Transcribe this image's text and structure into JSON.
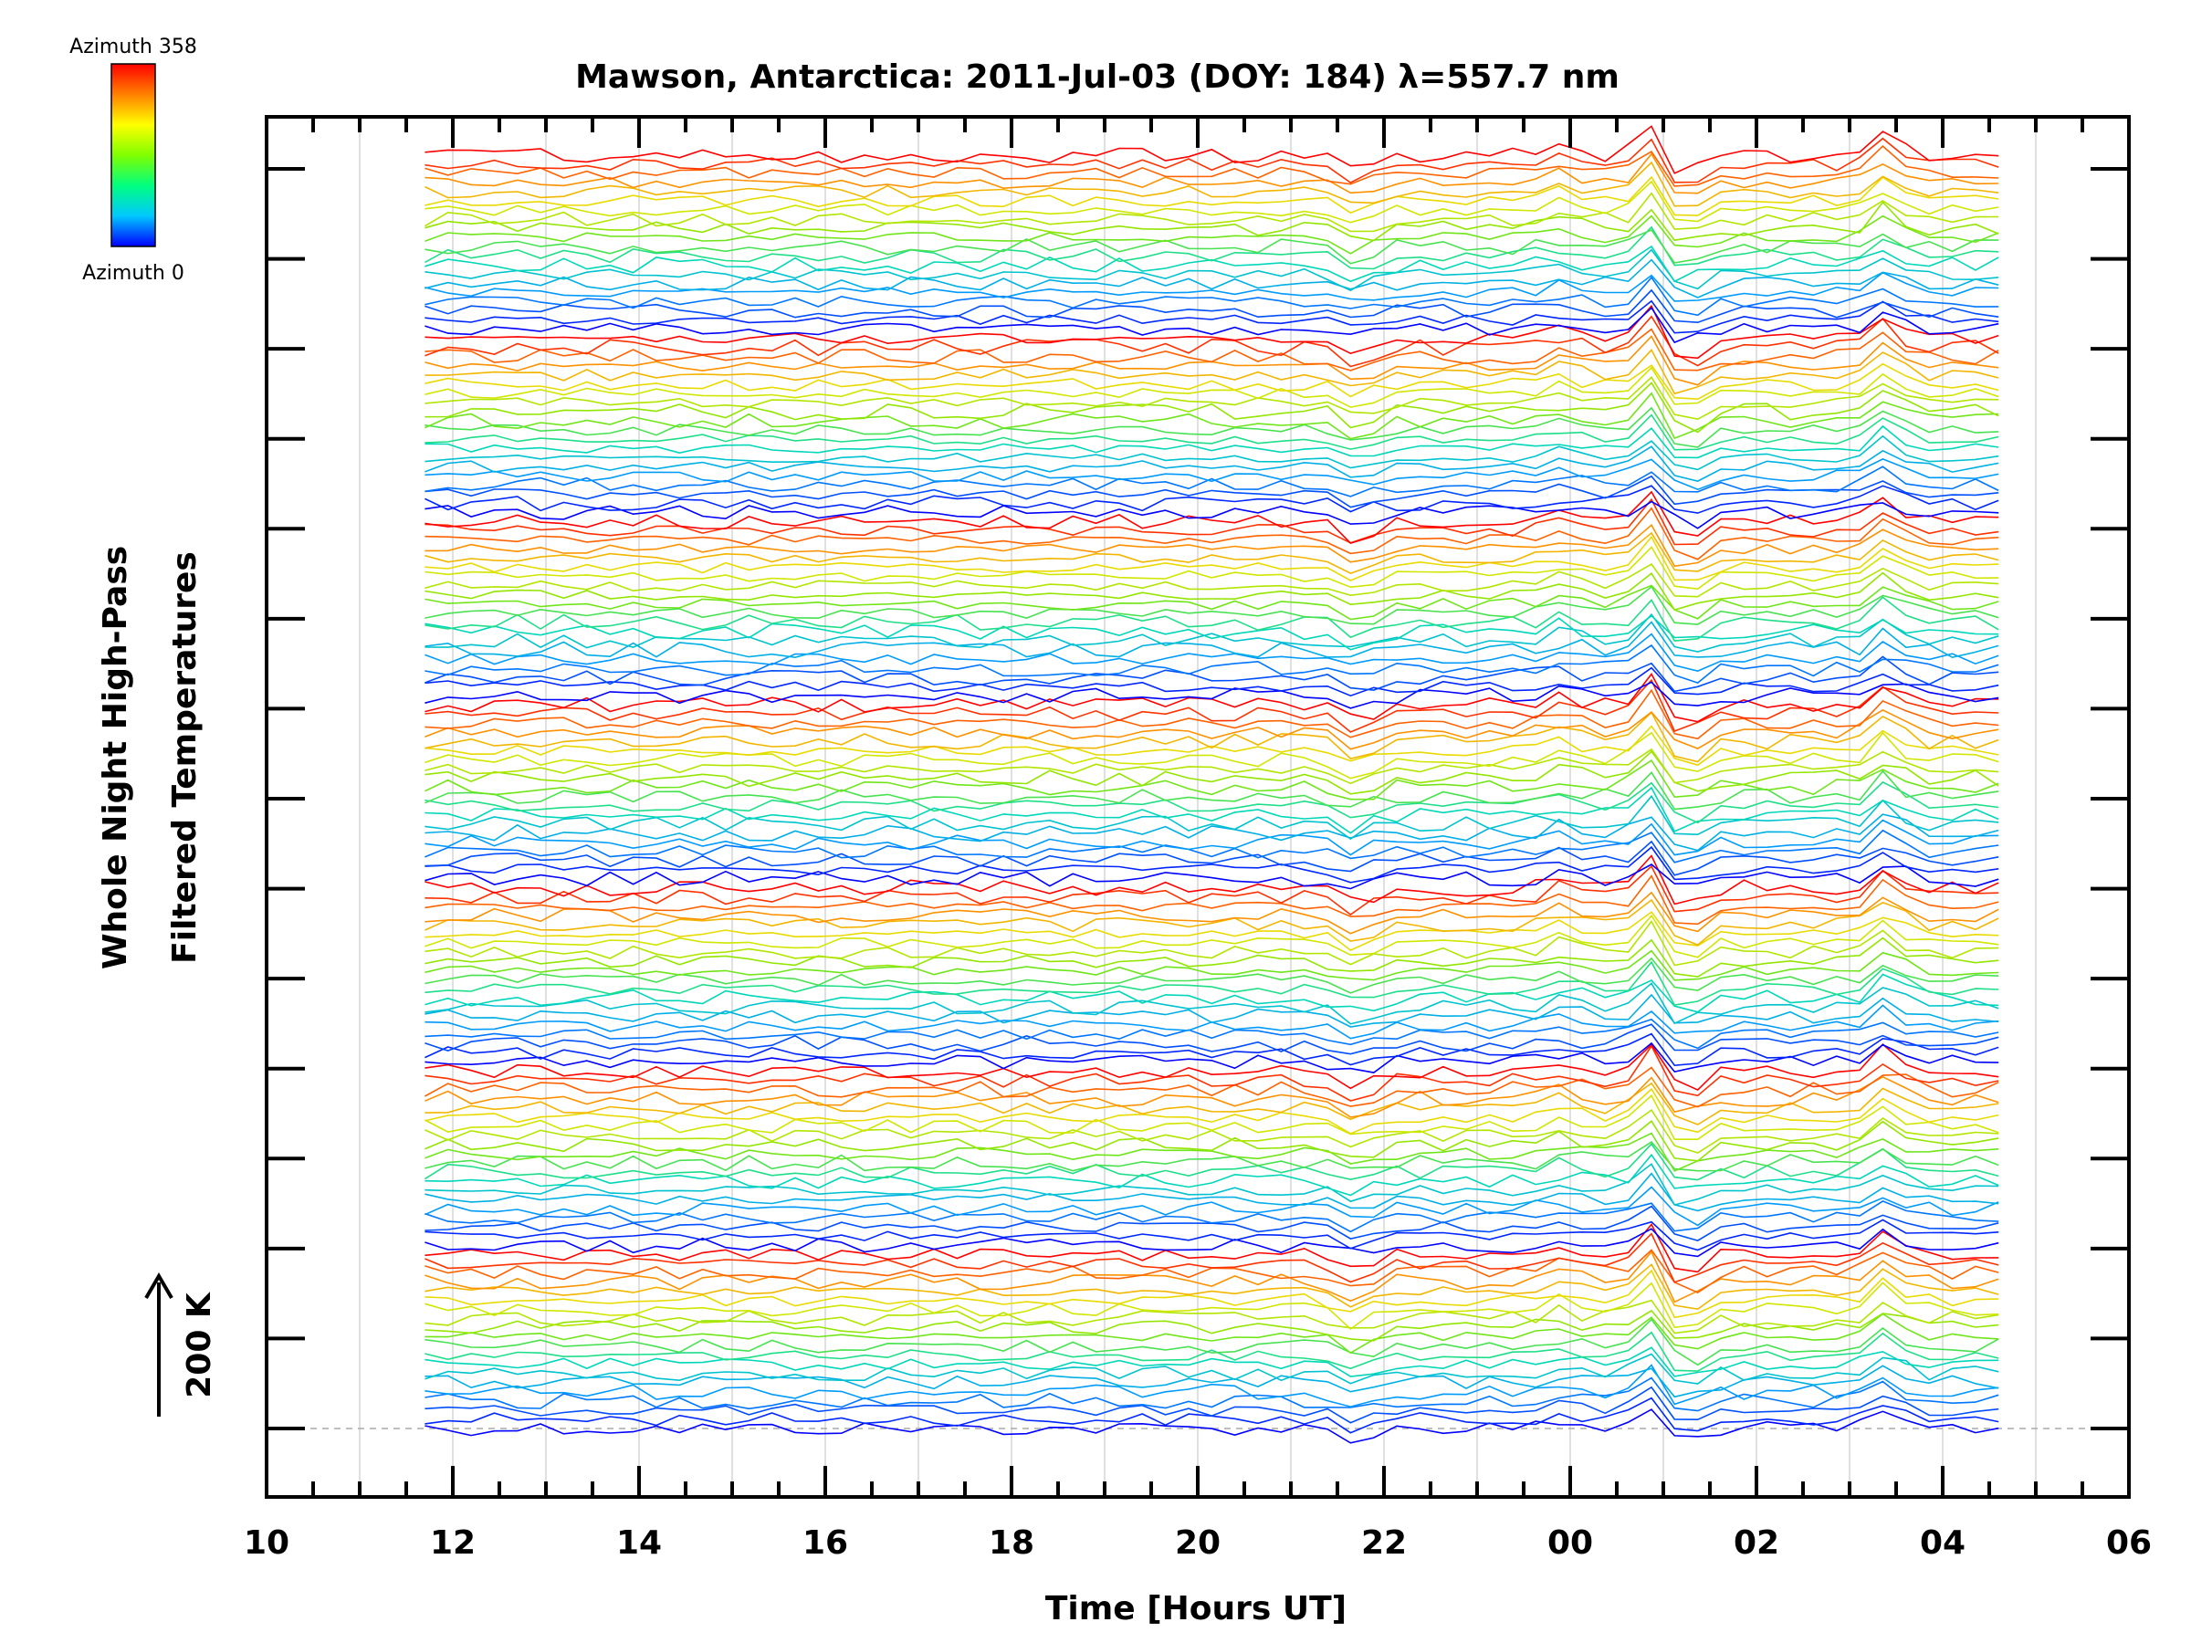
{
  "chart_data": {
    "type": "line",
    "title": "Mawson, Antarctica: 2011-Jul-03 (DOY: 184) λ=557.7 nm",
    "xlabel": "Time [Hours UT]",
    "ylabel_line1": "Whole Night High-Pass",
    "ylabel_line2": "Filtered Temperatures",
    "scale_label": "200 K",
    "colorbar": {
      "top_label": "Azimuth 358",
      "bottom_label": "Azimuth 0",
      "colors": [
        "#ff0000",
        "#ff8000",
        "#ffff00",
        "#80ff00",
        "#00ff80",
        "#00c8ff",
        "#0000ff"
      ]
    },
    "x_tick_labels": [
      "10",
      "12",
      "14",
      "16",
      "18",
      "20",
      "22",
      "00",
      "02",
      "04",
      "06"
    ],
    "x_tick_hours": [
      10,
      12,
      14,
      16,
      18,
      20,
      22,
      24,
      26,
      28,
      30
    ],
    "xlim_hours": [
      10,
      30
    ],
    "data_xlim_hours": [
      11.7,
      28.6
    ],
    "grid": true,
    "n_traces": 140,
    "traces_per_group": 20,
    "trace_color_scale": "rainbow, azimuth 0 (blue) to 358 (red)",
    "scale_bar_k": 200,
    "y_major_ticks": 15,
    "features": [
      {
        "hour_ut": 24.9,
        "description": "sharp positive temperature excursion followed by drop across all traces"
      },
      {
        "hour_ut": 27.4,
        "description": "positive temperature excursion across all traces"
      },
      {
        "hour_ut": 21.7,
        "description": "negative temperature dip in lower traces"
      }
    ]
  }
}
